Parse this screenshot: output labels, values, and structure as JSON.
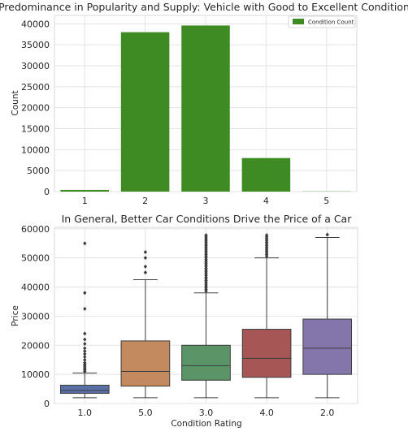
{
  "chart_data": [
    {
      "type": "bar",
      "title": "Predominance in Popularity and Supply: Vehicle with Good to Excellent Condition",
      "xlabel": "",
      "ylabel": "Count",
      "categories": [
        "1",
        "2",
        "3",
        "4",
        "5"
      ],
      "series": [
        {
          "name": "Condition Count",
          "values": [
            400,
            38000,
            39600,
            8000,
            50
          ],
          "color": "#3e8a23"
        }
      ],
      "ylim": [
        0,
        42000
      ],
      "yticks": [
        0,
        5000,
        10000,
        15000,
        20000,
        25000,
        30000,
        35000,
        40000
      ],
      "grid": true,
      "legend": "top-right"
    },
    {
      "type": "box",
      "title": "In General, Better Car Conditions Drive the Price of a Car",
      "xlabel": "Condition Rating",
      "ylabel": "Price",
      "categories": [
        "1.0",
        "5.0",
        "3.0",
        "4.0",
        "2.0"
      ],
      "colors": [
        "#5a6fa8",
        "#c48a5f",
        "#5b9467",
        "#a65755",
        "#8476aa"
      ],
      "boxes": [
        {
          "whisker_low": 2000,
          "q1": 3500,
          "median": 4500,
          "q3": 6300,
          "whisker_high": 10500,
          "outliers": [
            11000,
            11500,
            12000,
            12500,
            13000,
            13500,
            14000,
            15000,
            16000,
            17000,
            18000,
            19000,
            20500,
            22000,
            24000,
            32500,
            38000,
            55000
          ]
        },
        {
          "whisker_low": 2000,
          "q1": 6000,
          "median": 11000,
          "q3": 21500,
          "whisker_high": 42500,
          "outliers": [
            45000,
            47000,
            50000,
            52000
          ]
        },
        {
          "whisker_low": 2000,
          "q1": 8000,
          "median": 13000,
          "q3": 20000,
          "whisker_high": 38000,
          "outliers": [
            38600,
            39200,
            39800,
            40400,
            41000,
            41600,
            42200,
            42800,
            43400,
            44000,
            44600,
            45200,
            45800,
            46400,
            47000,
            47600,
            48200,
            48800,
            49400,
            50000,
            50600,
            51200,
            51800,
            52400,
            53000,
            53600,
            54200,
            54800,
            55400,
            56000,
            56600,
            57200,
            57800
          ]
        },
        {
          "whisker_low": 2000,
          "q1": 9000,
          "median": 15500,
          "q3": 25500,
          "whisker_high": 50000,
          "outliers": [
            50600,
            51200,
            51800,
            52400,
            53000,
            53600,
            54200,
            54800,
            55400,
            56000,
            56600,
            57200,
            57800
          ]
        },
        {
          "whisker_low": 2000,
          "q1": 10000,
          "median": 19000,
          "q3": 29000,
          "whisker_high": 57000,
          "outliers": [
            58000
          ]
        }
      ],
      "ylim": [
        0,
        60500
      ],
      "yticks": [
        0,
        10000,
        20000,
        30000,
        40000,
        50000,
        60000
      ],
      "grid": true
    }
  ]
}
